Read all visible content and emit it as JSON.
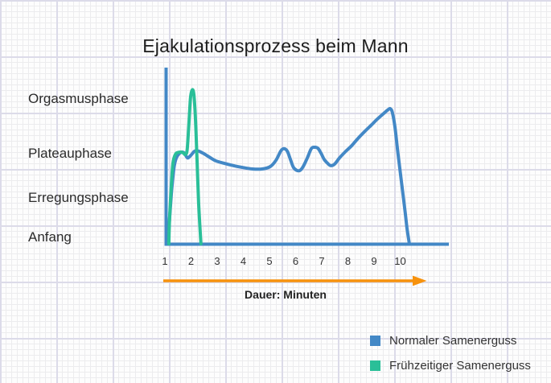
{
  "title": "Ejakulationsprozess beim Mann",
  "y_axis_labels": [
    "Orgasmusphase",
    "Plateauphase",
    "Erregungsphase",
    "Anfang"
  ],
  "x_axis": {
    "label": "Dauer: Minuten",
    "ticks": [
      "1",
      "2",
      "3",
      "4",
      "5",
      "6",
      "7",
      "8",
      "9",
      "10"
    ]
  },
  "legend": {
    "items": [
      {
        "label": "Normaler Samenerguss",
        "color": "#4388c6"
      },
      {
        "label": "Frühzeitiger Samenerguss",
        "color": "#2abf98"
      }
    ]
  },
  "colors": {
    "axis": "#4388c6",
    "arrow": "#f7920d",
    "title_text": "#1c1c1c",
    "label_text": "#2b2b2b"
  },
  "chart_data": {
    "type": "line",
    "title": "Ejakulationsprozess beim Mann",
    "xlabel": "Dauer: Minuten",
    "x_ticks": [
      1,
      2,
      3,
      4,
      5,
      6,
      7,
      8,
      9,
      10
    ],
    "x_range": [
      1,
      10.9
    ],
    "grid": "graph-paper background, no inner gridlines",
    "legend_position": "bottom-right",
    "y_levels": [
      {
        "value": 0,
        "label": "Anfang"
      },
      {
        "value": 1,
        "label": "Erregungsphase"
      },
      {
        "value": 2,
        "label": "Plateauphase"
      },
      {
        "value": 3,
        "label": "Orgasmusphase"
      }
    ],
    "series": [
      {
        "name": "Normaler Samenerguss",
        "color": "#4388c6",
        "points": [
          [
            1.12,
            0.0
          ],
          [
            1.18,
            0.52
          ],
          [
            1.25,
            1.05
          ],
          [
            1.34,
            1.55
          ],
          [
            1.43,
            1.77
          ],
          [
            1.55,
            1.87
          ],
          [
            1.65,
            1.9
          ],
          [
            1.74,
            1.88
          ],
          [
            1.83,
            1.8
          ],
          [
            1.89,
            1.78
          ],
          [
            2.02,
            1.85
          ],
          [
            2.14,
            1.92
          ],
          [
            2.29,
            1.92
          ],
          [
            2.48,
            1.87
          ],
          [
            2.69,
            1.8
          ],
          [
            2.94,
            1.72
          ],
          [
            3.25,
            1.67
          ],
          [
            3.62,
            1.62
          ],
          [
            3.98,
            1.58
          ],
          [
            4.35,
            1.55
          ],
          [
            4.72,
            1.55
          ],
          [
            5.03,
            1.6
          ],
          [
            5.25,
            1.73
          ],
          [
            5.43,
            1.92
          ],
          [
            5.55,
            1.97
          ],
          [
            5.68,
            1.92
          ],
          [
            5.8,
            1.75
          ],
          [
            5.92,
            1.58
          ],
          [
            6.05,
            1.52
          ],
          [
            6.17,
            1.52
          ],
          [
            6.29,
            1.6
          ],
          [
            6.45,
            1.78
          ],
          [
            6.6,
            1.97
          ],
          [
            6.72,
            2.0
          ],
          [
            6.85,
            1.98
          ],
          [
            6.97,
            1.88
          ],
          [
            7.09,
            1.75
          ],
          [
            7.22,
            1.67
          ],
          [
            7.34,
            1.62
          ],
          [
            7.49,
            1.65
          ],
          [
            7.68,
            1.78
          ],
          [
            7.89,
            1.9
          ],
          [
            8.14,
            2.03
          ],
          [
            8.38,
            2.18
          ],
          [
            8.63,
            2.32
          ],
          [
            8.88,
            2.45
          ],
          [
            9.12,
            2.58
          ],
          [
            9.37,
            2.7
          ],
          [
            9.52,
            2.77
          ],
          [
            9.62,
            2.8
          ],
          [
            9.7,
            2.72
          ],
          [
            9.8,
            2.42
          ],
          [
            9.92,
            1.85
          ],
          [
            10.05,
            1.28
          ],
          [
            10.17,
            0.75
          ],
          [
            10.26,
            0.33
          ],
          [
            10.35,
            0.0
          ]
        ]
      },
      {
        "name": "Frühzeitiger Samenerguss",
        "color": "#2abf98",
        "points": [
          [
            1.15,
            0.0
          ],
          [
            1.18,
            0.52
          ],
          [
            1.25,
            1.25
          ],
          [
            1.31,
            1.68
          ],
          [
            1.4,
            1.85
          ],
          [
            1.49,
            1.89
          ],
          [
            1.62,
            1.9
          ],
          [
            1.71,
            1.88
          ],
          [
            1.78,
            1.85
          ],
          [
            1.85,
            1.94
          ],
          [
            1.91,
            2.42
          ],
          [
            1.98,
            3.02
          ],
          [
            2.05,
            3.19
          ],
          [
            2.11,
            3.08
          ],
          [
            2.17,
            2.58
          ],
          [
            2.23,
            1.72
          ],
          [
            2.29,
            0.85
          ],
          [
            2.35,
            0.25
          ],
          [
            2.38,
            0.0
          ]
        ]
      }
    ]
  }
}
